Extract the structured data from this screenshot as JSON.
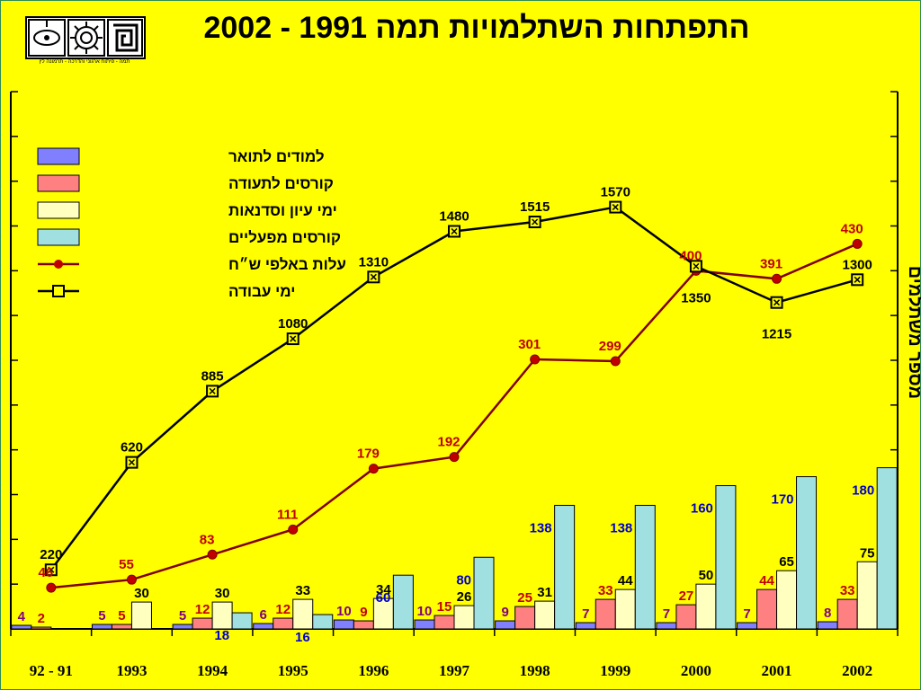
{
  "title": "התפתחות השתלמויות  תמה 1991 - 2002",
  "logo": {
    "caption": "תמה - פיתוח ארגוני והדרכה - תרמונה לין"
  },
  "colors": {
    "background": "#ffff00",
    "plot_background": "#ffff00",
    "graduates": "#8080ff",
    "certificate_courses": "#ff8080",
    "seminars": "#ffffc0",
    "operational_courses": "#a0e0e0",
    "costs_line": "#800000",
    "costs_marker": "#c00000",
    "workdays_line": "#000000",
    "workdays_marker": "#ffff00"
  },
  "chart_data": {
    "type": "bar",
    "title": "התפתחות השתלמויות  תמה 1991 - 2002",
    "ylabel": "מספר משתלמים",
    "ylim": [
      0,
      600
    ],
    "ytick_step": 50,
    "grid": false,
    "legend_position": "top-left",
    "categories": [
      "92 - 91",
      "1993",
      "1994",
      "1995",
      "1996",
      "1997",
      "1998",
      "1999",
      "2000",
      "2001",
      "2002"
    ],
    "series": [
      {
        "name": "למודים לתואר",
        "type": "bar",
        "color_key": "graduates",
        "values": [
          4,
          5,
          5,
          6,
          10,
          10,
          9,
          7,
          7,
          7,
          8
        ],
        "labels": [
          "4",
          "5",
          "5",
          "6",
          "10",
          "10",
          "9",
          "7",
          "7",
          "7",
          "8"
        ]
      },
      {
        "name": "קורסים לתעודה",
        "type": "bar",
        "color_key": "certificate_courses",
        "values": [
          2,
          5,
          12,
          12,
          9,
          15,
          25,
          33,
          27,
          44,
          33
        ],
        "labels": [
          "2",
          "5",
          "12",
          "12",
          "9",
          "15",
          "25",
          "33",
          "27",
          "44",
          "33"
        ]
      },
      {
        "name": "ימי עיון וסדנאות",
        "type": "bar",
        "color_key": "seminars",
        "values": [
          0,
          30,
          30,
          33,
          34,
          26,
          31,
          44,
          50,
          65,
          75
        ],
        "labels": [
          "",
          "30",
          "30",
          "33",
          "34",
          "26",
          "31",
          "44",
          "50",
          "65",
          "75"
        ]
      },
      {
        "name": "קורסים מפעליים",
        "type": "bar",
        "color_key": "operational_courses",
        "values": [
          0,
          0,
          18,
          16,
          60,
          80,
          138,
          138,
          160,
          170,
          180
        ],
        "labels": [
          "",
          "",
          "18",
          "16",
          "60",
          "80",
          "138",
          "138",
          "160",
          "170",
          "180"
        ]
      },
      {
        "name": "עלות באלפי ש״ח",
        "type": "line",
        "color_key": "costs_line",
        "values": [
          46,
          55,
          83,
          111,
          179,
          192,
          301,
          299,
          400,
          391,
          430
        ],
        "labels": [
          "46",
          "55",
          "83",
          "111",
          "179",
          "192",
          "301",
          "299",
          "400",
          "391",
          "430"
        ]
      },
      {
        "name": "ימי עבודה",
        "type": "line",
        "color_key": "workdays_line",
        "values": [
          220,
          620,
          885,
          1080,
          1310,
          1480,
          1515,
          1570,
          1350,
          1215,
          1300
        ],
        "labels": [
          "220",
          "620",
          "885",
          "1080",
          "1310",
          "1480",
          "1515",
          "1570",
          "1350",
          "1215",
          "1300"
        ]
      }
    ]
  }
}
